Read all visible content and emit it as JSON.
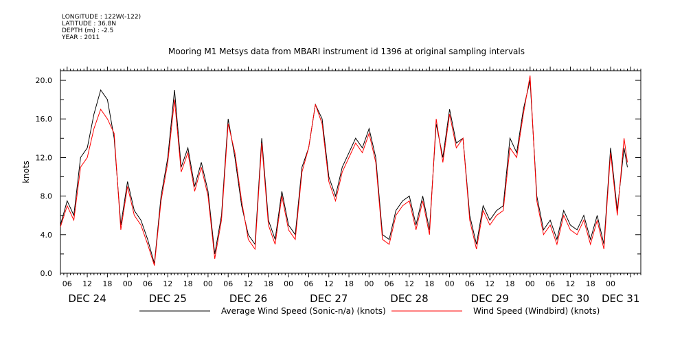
{
  "meta": {
    "longitude": "LONGITUDE : 122W(-122)",
    "latitude": "LATITUDE : 36.8N",
    "depth": "DEPTH (m) : -2.5",
    "year": "YEAR : 2011"
  },
  "chart_data": {
    "type": "line",
    "title": "Mooring M1 Metsys data from MBARI instrument id 1396 at original sampling intervals",
    "ylabel": "knots",
    "xlabel": "",
    "ylim": [
      0,
      21
    ],
    "yticks": [
      0,
      4,
      8,
      12,
      16,
      20
    ],
    "ytick_labels": [
      "0.0",
      "4.0",
      "8.0",
      "12.0",
      "16.0",
      "20.0"
    ],
    "xlim_hours": [
      4,
      177
    ],
    "xticks_hours": [
      6,
      12,
      18,
      24,
      30,
      36,
      42,
      48,
      54,
      60,
      66,
      72,
      78,
      84,
      90,
      96,
      102,
      108,
      114,
      120,
      126,
      132,
      138,
      144,
      150,
      156,
      162,
      168
    ],
    "xtick_labels": [
      "06",
      "12",
      "18",
      "00",
      "06",
      "12",
      "18",
      "00",
      "06",
      "12",
      "18",
      "00",
      "06",
      "12",
      "18",
      "00",
      "06",
      "12",
      "18",
      "00",
      "06",
      "12",
      "18",
      "00",
      "06",
      "12",
      "18",
      "00"
    ],
    "day_labels": [
      {
        "label": "DEC 24",
        "hour": 12
      },
      {
        "label": "DEC 25",
        "hour": 36
      },
      {
        "label": "DEC 26",
        "hour": 60
      },
      {
        "label": "DEC 27",
        "hour": 84
      },
      {
        "label": "DEC 28",
        "hour": 108
      },
      {
        "label": "DEC 29",
        "hour": 132
      },
      {
        "label": "DEC 30",
        "hour": 156
      },
      {
        "label": "DEC 31",
        "hour": 171
      }
    ],
    "grid": false,
    "legend_position": "bottom",
    "series": [
      {
        "name": "Average Wind Speed (Sonic-n/a) (knots)",
        "color": "#000000",
        "x": [
          4,
          6,
          8,
          10,
          12,
          14,
          16,
          18,
          20,
          22,
          24,
          26,
          28,
          30,
          32,
          34,
          36,
          38,
          40,
          42,
          44,
          46,
          48,
          50,
          52,
          54,
          56,
          58,
          60,
          62,
          64,
          66,
          68,
          70,
          72,
          74,
          76,
          78,
          80,
          82,
          84,
          86,
          88,
          90,
          92,
          94,
          96,
          98,
          100,
          102,
          104,
          106,
          108,
          110,
          112,
          114,
          116,
          118,
          120,
          122,
          124,
          126,
          128,
          130,
          132,
          134,
          136,
          138,
          140,
          142,
          144,
          146,
          148,
          150,
          152,
          154,
          156,
          158,
          160,
          162,
          164,
          166,
          168,
          170,
          172,
          173
        ],
        "y": [
          5.0,
          7.5,
          6.0,
          12.0,
          13.0,
          16.5,
          19.0,
          18.0,
          14.0,
          5.0,
          9.5,
          6.5,
          5.5,
          3.5,
          1.0,
          8.0,
          12.0,
          19.0,
          11.0,
          13.0,
          9.0,
          11.5,
          8.5,
          2.0,
          6.0,
          16.0,
          12.0,
          7.0,
          4.0,
          3.0,
          14.0,
          5.5,
          3.5,
          8.5,
          5.0,
          4.0,
          11.0,
          13.0,
          17.5,
          16.0,
          10.0,
          8.0,
          11.0,
          12.5,
          14.0,
          13.0,
          15.0,
          12.0,
          4.0,
          3.5,
          6.5,
          7.5,
          8.0,
          5.0,
          8.0,
          4.5,
          15.5,
          12.0,
          17.0,
          13.5,
          14.0,
          6.0,
          3.0,
          7.0,
          5.5,
          6.5,
          7.0,
          14.0,
          12.5,
          17.0,
          20.0,
          8.0,
          4.5,
          5.5,
          3.5,
          6.5,
          5.0,
          4.5,
          6.0,
          3.5,
          6.0,
          3.0,
          13.0,
          6.5,
          13.0,
          11.0
        ]
      },
      {
        "name": "Wind Speed (Windbird) (knots)",
        "color": "#ff0000",
        "x": [
          4,
          6,
          8,
          10,
          12,
          14,
          16,
          18,
          20,
          22,
          24,
          26,
          28,
          30,
          32,
          34,
          36,
          38,
          40,
          42,
          44,
          46,
          48,
          50,
          52,
          54,
          56,
          58,
          60,
          62,
          64,
          66,
          68,
          70,
          72,
          74,
          76,
          78,
          80,
          82,
          84,
          86,
          88,
          90,
          92,
          94,
          96,
          98,
          100,
          102,
          104,
          106,
          108,
          110,
          112,
          114,
          116,
          118,
          120,
          122,
          124,
          126,
          128,
          130,
          132,
          134,
          136,
          138,
          140,
          142,
          144,
          146,
          148,
          150,
          152,
          154,
          156,
          158,
          160,
          162,
          164,
          166,
          168,
          170,
          172,
          173
        ],
        "y": [
          4.8,
          7.0,
          5.5,
          11.0,
          12.0,
          15.0,
          17.0,
          16.0,
          14.5,
          4.5,
          9.0,
          6.0,
          5.0,
          3.0,
          0.8,
          7.5,
          11.5,
          18.0,
          10.5,
          12.5,
          8.5,
          11.0,
          8.0,
          1.5,
          5.5,
          15.5,
          12.5,
          7.5,
          3.5,
          2.5,
          13.5,
          5.0,
          3.0,
          8.0,
          4.5,
          3.5,
          10.5,
          13.0,
          17.5,
          15.5,
          9.5,
          7.5,
          10.5,
          12.0,
          13.5,
          12.5,
          14.5,
          11.5,
          3.5,
          3.0,
          6.0,
          7.0,
          7.5,
          4.5,
          7.5,
          4.0,
          16.0,
          11.5,
          16.5,
          13.0,
          14.0,
          5.5,
          2.5,
          6.5,
          5.0,
          6.0,
          6.5,
          13.0,
          12.0,
          16.5,
          20.5,
          7.5,
          4.0,
          5.0,
          3.0,
          6.0,
          4.5,
          4.0,
          5.5,
          3.0,
          5.5,
          2.5,
          12.5,
          6.0,
          14.0,
          11.5
        ]
      }
    ]
  }
}
